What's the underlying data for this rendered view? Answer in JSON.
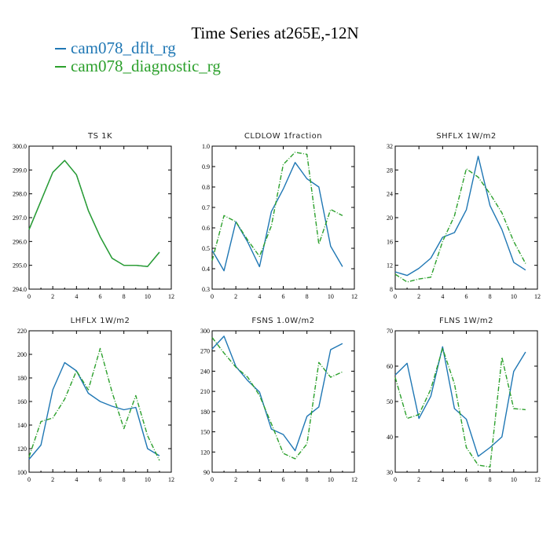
{
  "page": {
    "title": "Time Series at265E,-12N",
    "legend": [
      {
        "label": "cam078_dflt_rg",
        "color": "#1f77b4"
      },
      {
        "label": "cam078_diagnostic_rg",
        "color": "#2ca02c"
      }
    ]
  },
  "chart_data": [
    {
      "type": "line",
      "title": "TS   1K",
      "x": [
        0,
        1,
        2,
        3,
        4,
        5,
        6,
        7,
        8,
        9,
        10,
        11
      ],
      "xlim": [
        0,
        12
      ],
      "xticks": [
        0,
        2,
        4,
        6,
        8,
        10,
        12
      ],
      "ylim": [
        294.0,
        300.0
      ],
      "yticks": [
        "294.0",
        "295.0",
        "296.0",
        "297.0",
        "298.0",
        "299.0",
        "300.0"
      ],
      "series": [
        {
          "name": "cam078_dflt_rg",
          "color": "#1f77b4",
          "dash": "solid",
          "values": [
            296.5,
            297.7,
            298.9,
            299.4,
            298.8,
            297.3,
            296.2,
            295.3,
            295.0,
            295.0,
            294.95,
            295.55
          ]
        },
        {
          "name": "cam078_diagnostic_rg",
          "color": "#2ca02c",
          "dash": "solid",
          "values": [
            296.5,
            297.7,
            298.9,
            299.4,
            298.8,
            297.3,
            296.2,
            295.3,
            295.0,
            295.0,
            294.95,
            295.55
          ]
        }
      ]
    },
    {
      "type": "line",
      "title": "CLDLOW   1fraction",
      "x": [
        0,
        1,
        2,
        3,
        4,
        5,
        6,
        7,
        8,
        9,
        10,
        11
      ],
      "xlim": [
        0,
        12
      ],
      "xticks": [
        0,
        2,
        4,
        6,
        8,
        10,
        12
      ],
      "ylim": [
        0.3,
        1.0
      ],
      "yticks": [
        "0.3",
        "0.4",
        "0.5",
        "0.6",
        "0.7",
        "0.8",
        "0.9",
        "1.0"
      ],
      "series": [
        {
          "name": "cam078_dflt_rg",
          "color": "#1f77b4",
          "dash": "solid",
          "values": [
            0.49,
            0.39,
            0.63,
            0.53,
            0.41,
            0.68,
            0.79,
            0.92,
            0.84,
            0.8,
            0.51,
            0.41
          ]
        },
        {
          "name": "cam078_diagnostic_rg",
          "color": "#2ca02c",
          "dash": "dashdot",
          "values": [
            0.44,
            0.66,
            0.63,
            0.54,
            0.46,
            0.61,
            0.91,
            0.97,
            0.96,
            0.52,
            0.69,
            0.66
          ]
        }
      ]
    },
    {
      "type": "line",
      "title": "SHFLX   1W/m2",
      "x": [
        0,
        1,
        2,
        3,
        4,
        5,
        6,
        7,
        8,
        9,
        10,
        11
      ],
      "xlim": [
        0,
        12
      ],
      "xticks": [
        0,
        2,
        4,
        6,
        8,
        10,
        12
      ],
      "ylim": [
        8,
        32
      ],
      "yticks": [
        "8",
        "12",
        "16",
        "20",
        "24",
        "28",
        "32"
      ],
      "series": [
        {
          "name": "cam078_dflt_rg",
          "color": "#1f77b4",
          "dash": "solid",
          "values": [
            10.9,
            10.3,
            11.5,
            13.2,
            16.7,
            17.5,
            21.3,
            30.3,
            22.0,
            18.0,
            12.5,
            11.2
          ]
        },
        {
          "name": "cam078_diagnostic_rg",
          "color": "#2ca02c",
          "dash": "dashdot",
          "values": [
            10.5,
            9.2,
            9.7,
            10.0,
            16.0,
            20.3,
            28.2,
            26.8,
            24.0,
            20.8,
            16.0,
            12.3
          ]
        }
      ]
    },
    {
      "type": "line",
      "title": "LHFLX   1W/m2",
      "x": [
        0,
        1,
        2,
        3,
        4,
        5,
        6,
        7,
        8,
        9,
        10,
        11
      ],
      "xlim": [
        0,
        12
      ],
      "xticks": [
        0,
        2,
        4,
        6,
        8,
        10,
        12
      ],
      "ylim": [
        100,
        220
      ],
      "yticks": [
        "100",
        "120",
        "140",
        "160",
        "180",
        "200",
        "220"
      ],
      "series": [
        {
          "name": "cam078_dflt_rg",
          "color": "#1f77b4",
          "dash": "solid",
          "values": [
            111,
            123,
            170,
            193,
            186,
            167,
            160,
            156,
            153,
            155,
            120,
            114
          ]
        },
        {
          "name": "cam078_diagnostic_rg",
          "color": "#2ca02c",
          "dash": "dashdot",
          "values": [
            113,
            143,
            146,
            162,
            186,
            170,
            205,
            168,
            137,
            165,
            131,
            110
          ]
        }
      ]
    },
    {
      "type": "line",
      "title": "FSNS   1.0W/m2",
      "x": [
        0,
        1,
        2,
        3,
        4,
        5,
        6,
        7,
        8,
        9,
        10,
        11
      ],
      "xlim": [
        0,
        12
      ],
      "xticks": [
        0,
        2,
        4,
        6,
        8,
        10,
        12
      ],
      "ylim": [
        90,
        300
      ],
      "yticks": [
        "90",
        "120",
        "150",
        "180",
        "210",
        "240",
        "270",
        "300"
      ],
      "series": [
        {
          "name": "cam078_dflt_rg",
          "color": "#1f77b4",
          "dash": "solid",
          "values": [
            273,
            292,
            247,
            226,
            209,
            154,
            146,
            122,
            173,
            187,
            272,
            281
          ]
        },
        {
          "name": "cam078_diagnostic_rg",
          "color": "#2ca02c",
          "dash": "dashdot",
          "values": [
            290,
            267,
            246,
            231,
            204,
            162,
            118,
            110,
            132,
            253,
            231,
            239
          ]
        }
      ]
    },
    {
      "type": "line",
      "title": "FLNS   1W/m2",
      "x": [
        0,
        1,
        2,
        3,
        4,
        5,
        6,
        7,
        8,
        9,
        10,
        11
      ],
      "xlim": [
        0,
        12
      ],
      "xticks": [
        0,
        2,
        4,
        6,
        8,
        10,
        12
      ],
      "ylim": [
        30,
        70
      ],
      "yticks": [
        "30",
        "40",
        "50",
        "60",
        "70"
      ],
      "series": [
        {
          "name": "cam078_dflt_rg",
          "color": "#1f77b4",
          "dash": "solid",
          "values": [
            57.5,
            60.8,
            45.2,
            51.5,
            65.5,
            48.0,
            45.0,
            34.5,
            37.0,
            40.0,
            58.5,
            64.0
          ]
        },
        {
          "name": "cam078_diagnostic_rg",
          "color": "#2ca02c",
          "dash": "dashdot",
          "values": [
            56.8,
            45.2,
            46.3,
            53.5,
            65.0,
            55.0,
            37.0,
            32.0,
            31.5,
            62.5,
            48.0,
            47.7
          ]
        }
      ]
    }
  ]
}
